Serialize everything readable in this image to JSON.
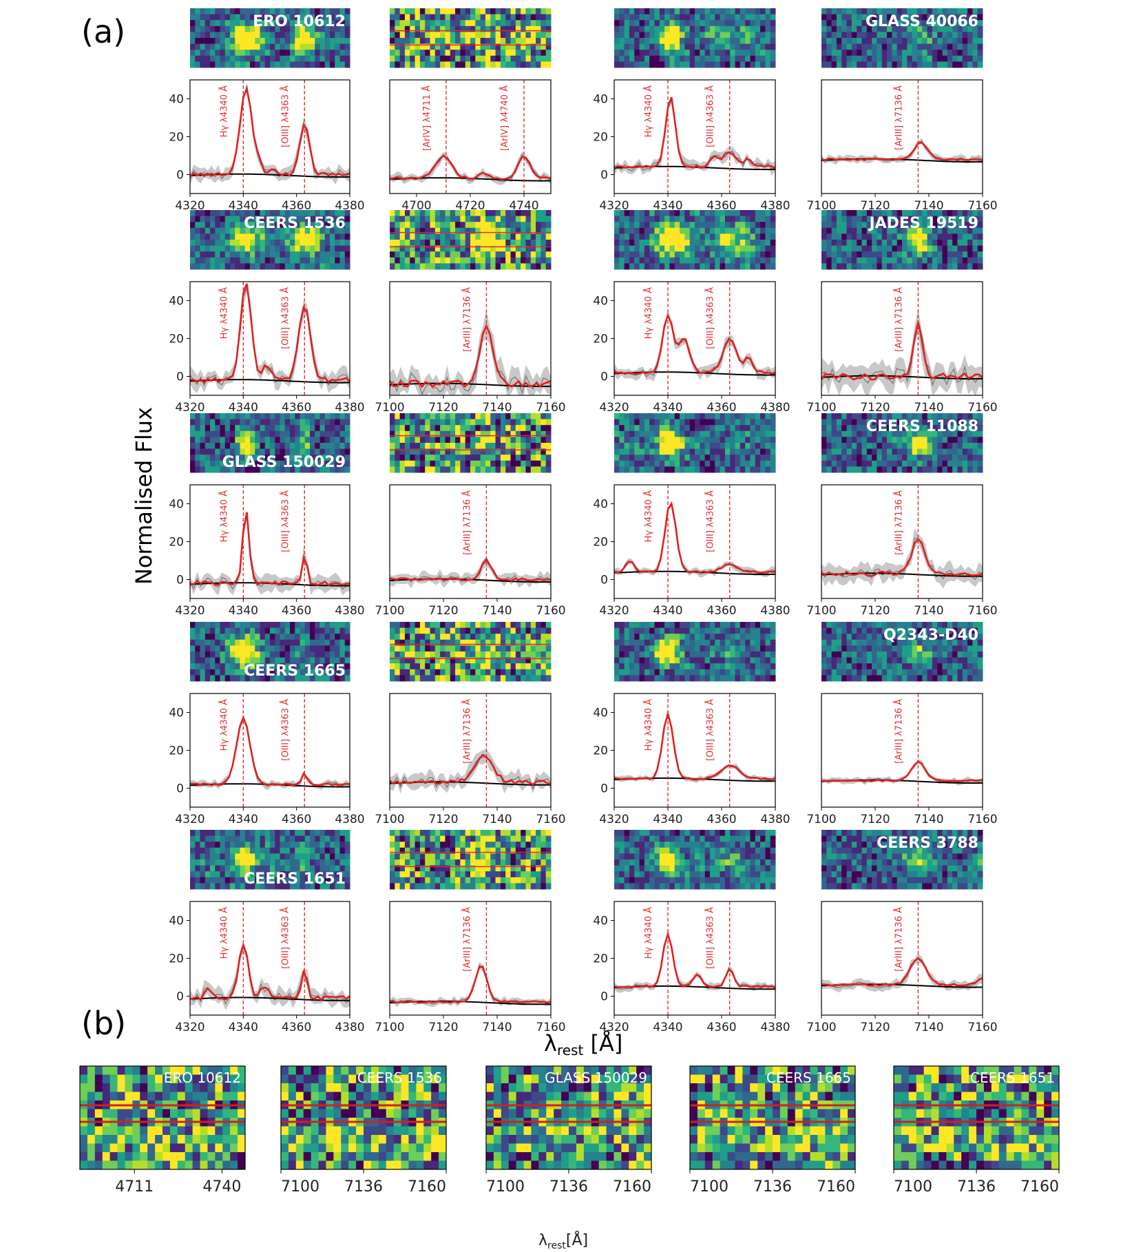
{
  "figure": {
    "panel_a_label": "(a)",
    "panel_b_label": "(b)",
    "ylabel": "Normalised Flux",
    "xlabel": "λ",
    "xlabel_sub": "rest",
    "xlabel_unit": " [Å]",
    "b_xlabel": "λ",
    "b_xlabel_sub": "rest",
    "b_xlabel_unit": "[Å]"
  },
  "colors": {
    "model": "#e02020",
    "data": "#7a7a7a",
    "error_band": "#c8c8c8",
    "continuum": "#000000",
    "marker": "#e03030",
    "viridis_low": "#440154",
    "viridis_high": "#fde725"
  },
  "chart_data": [
    {
      "type": "line",
      "row": 0,
      "col": 0,
      "name": "ERO 10612",
      "window": "Hg",
      "xlim": [
        4320,
        4380
      ],
      "ylim": [
        -10,
        50
      ],
      "xticks": [
        4320,
        4340,
        4360,
        4380
      ],
      "yticks": [
        0,
        20,
        40
      ],
      "lines": [
        {
          "x": 4340,
          "label": "Hγ λ4340 Å"
        },
        {
          "x": 4363,
          "label": "[OIII] λ4363 Å"
        }
      ],
      "peaks": [
        [
          4341,
          46,
          2.2
        ],
        [
          4363,
          27,
          1.8
        ],
        [
          4346,
          6,
          1.2
        ],
        [
          4351,
          3,
          1.2
        ]
      ],
      "base": 0,
      "noise": 3
    },
    {
      "type": "line",
      "row": 0,
      "col": 1,
      "name": "",
      "window": "ArIV",
      "xlim": [
        4690,
        4750
      ],
      "ylim": [
        -10,
        50
      ],
      "xticks": [
        4700,
        4720,
        4740
      ],
      "yticks": [],
      "lines": [
        {
          "x": 4711,
          "label": "[ArIV] λ4711 Å"
        },
        {
          "x": 4740,
          "label": "[ArIV] λ4740 Å"
        }
      ],
      "peaks": [
        [
          4710,
          12,
          3.0
        ],
        [
          4740,
          12,
          2.2
        ],
        [
          4725,
          3,
          1.5
        ]
      ],
      "base": -2,
      "noise": 1.8
    },
    {
      "type": "line",
      "row": 0,
      "col": 2,
      "name": "",
      "window": "Hg",
      "xlim": [
        4320,
        4380
      ],
      "ylim": [
        -10,
        50
      ],
      "xticks": [
        4320,
        4340,
        4360,
        4380
      ],
      "yticks": [
        0,
        20,
        40
      ],
      "lines": [
        {
          "x": 4340,
          "label": "Hγ λ4340 Å"
        },
        {
          "x": 4363,
          "label": "[OIII] λ4363 Å"
        }
      ],
      "peaks": [
        [
          4341,
          37,
          1.8
        ],
        [
          4363,
          8,
          2.5
        ],
        [
          4357,
          5,
          1.5
        ],
        [
          4370,
          4,
          1.5
        ]
      ],
      "base": 4,
      "noise": 2.5
    },
    {
      "type": "line",
      "row": 0,
      "col": 3,
      "name": "GLASS 40066",
      "window": "ArIII",
      "xlim": [
        7100,
        7160
      ],
      "ylim": [
        -10,
        50
      ],
      "xticks": [
        7100,
        7120,
        7140,
        7160
      ],
      "yticks": [],
      "lines": [
        {
          "x": 7136,
          "label": "[ArIII] λ7136 Å"
        }
      ],
      "peaks": [
        [
          7137,
          9,
          2.5
        ]
      ],
      "base": 8,
      "noise": 1.5
    },
    {
      "type": "line",
      "row": 1,
      "col": 0,
      "name": "CEERS 1536",
      "window": "Hg",
      "xlim": [
        4320,
        4380
      ],
      "ylim": [
        -10,
        50
      ],
      "xticks": [
        4320,
        4340,
        4360,
        4380
      ],
      "yticks": [
        0,
        20,
        40
      ],
      "lines": [
        {
          "x": 4340,
          "label": "Hγ λ4340 Å"
        },
        {
          "x": 4363,
          "label": "[OIII] λ4363 Å"
        }
      ],
      "peaks": [
        [
          4341,
          52,
          2.0
        ],
        [
          4363,
          39,
          2.2
        ],
        [
          4349,
          8,
          1.5
        ]
      ],
      "base": -2,
      "noise": 4
    },
    {
      "type": "line",
      "row": 1,
      "col": 1,
      "name": "",
      "window": "ArIII",
      "xlim": [
        7100,
        7160
      ],
      "ylim": [
        -10,
        50
      ],
      "xticks": [
        7100,
        7120,
        7140,
        7160
      ],
      "yticks": [],
      "lines": [
        {
          "x": 7136,
          "label": "[ArIII] λ7136 Å"
        }
      ],
      "peaks": [
        [
          7136,
          30,
          2.5
        ]
      ],
      "base": -4,
      "noise": 6
    },
    {
      "type": "line",
      "row": 1,
      "col": 2,
      "name": "",
      "window": "Hg",
      "xlim": [
        4320,
        4380
      ],
      "ylim": [
        -10,
        50
      ],
      "xticks": [
        4320,
        4340,
        4360,
        4380
      ],
      "yticks": [
        0,
        20,
        40
      ],
      "lines": [
        {
          "x": 4340,
          "label": "Hγ λ4340 Å"
        },
        {
          "x": 4363,
          "label": "[OIII] λ4363 Å"
        }
      ],
      "peaks": [
        [
          4340,
          30,
          2.0
        ],
        [
          4346,
          18,
          2.0
        ],
        [
          4363,
          18,
          2.5
        ],
        [
          4370,
          8,
          1.5
        ]
      ],
      "base": 2,
      "noise": 2.5
    },
    {
      "type": "line",
      "row": 1,
      "col": 3,
      "name": "JADES 19519",
      "window": "ArIII",
      "xlim": [
        7100,
        7160
      ],
      "ylim": [
        -10,
        50
      ],
      "xticks": [
        7100,
        7120,
        7140,
        7160
      ],
      "yticks": [],
      "lines": [
        {
          "x": 7136,
          "label": "[ArIII] λ7136 Å"
        }
      ],
      "peaks": [
        [
          7136,
          28,
          1.6
        ]
      ],
      "base": 0,
      "noise": 6
    },
    {
      "type": "line",
      "row": 2,
      "col": 0,
      "name": "GLASS 150029",
      "window": "Hg",
      "xlim": [
        4320,
        4380
      ],
      "ylim": [
        -10,
        50
      ],
      "xticks": [
        4320,
        4340,
        4360,
        4380
      ],
      "yticks": [
        0,
        20,
        40
      ],
      "lines": [
        {
          "x": 4340,
          "label": "Hγ λ4340 Å"
        },
        {
          "x": 4363,
          "label": "[OIII] λ4363 Å"
        }
      ],
      "peaks": [
        [
          4341,
          39,
          1.2
        ],
        [
          4363,
          14,
          1.0
        ]
      ],
      "base": -2,
      "noise": 3.5
    },
    {
      "type": "line",
      "row": 2,
      "col": 1,
      "name": "",
      "window": "ArIII",
      "xlim": [
        7100,
        7160
      ],
      "ylim": [
        -10,
        50
      ],
      "xticks": [
        7100,
        7120,
        7140,
        7160
      ],
      "yticks": [],
      "lines": [
        {
          "x": 7136,
          "label": "[ArIII] λ7136 Å"
        }
      ],
      "peaks": [
        [
          7136,
          10,
          2.0
        ]
      ],
      "base": 0,
      "noise": 2.5
    },
    {
      "type": "line",
      "row": 2,
      "col": 2,
      "name": "",
      "window": "Hg",
      "xlim": [
        4320,
        4380
      ],
      "ylim": [
        -10,
        50
      ],
      "xticks": [
        4320,
        4340,
        4360,
        4380
      ],
      "yticks": [
        0,
        20,
        40
      ],
      "lines": [
        {
          "x": 4340,
          "label": "Hγ λ4340 Å"
        },
        {
          "x": 4363,
          "label": "[OIII] λ4363 Å"
        }
      ],
      "peaks": [
        [
          4341,
          37,
          2.0
        ],
        [
          4326,
          6,
          1.5
        ],
        [
          4363,
          4,
          3.0
        ]
      ],
      "base": 4,
      "noise": 1.5
    },
    {
      "type": "line",
      "row": 2,
      "col": 3,
      "name": "CEERS 11088",
      "window": "ArIII",
      "xlim": [
        7100,
        7160
      ],
      "ylim": [
        -10,
        50
      ],
      "xticks": [
        7100,
        7120,
        7140,
        7160
      ],
      "yticks": [],
      "lines": [
        {
          "x": 7136,
          "label": "[ArIII] λ7136 Å"
        }
      ],
      "peaks": [
        [
          7136,
          18,
          2.5
        ]
      ],
      "base": 3,
      "noise": 4
    },
    {
      "type": "line",
      "row": 3,
      "col": 0,
      "name": "CEERS 1665",
      "window": "Hg",
      "xlim": [
        4320,
        4380
      ],
      "ylim": [
        -10,
        50
      ],
      "xticks": [
        4320,
        4340,
        4360,
        4380
      ],
      "yticks": [
        0,
        20,
        40
      ],
      "lines": [
        {
          "x": 4340,
          "label": "Hγ λ4340 Å"
        },
        {
          "x": 4363,
          "label": "[OIII] λ4363 Å"
        }
      ],
      "peaks": [
        [
          4340,
          35,
          2.5
        ],
        [
          4363,
          6,
          1.0
        ]
      ],
      "base": 2,
      "noise": 1.5
    },
    {
      "type": "line",
      "row": 3,
      "col": 1,
      "name": "",
      "window": "ArIII",
      "xlim": [
        7100,
        7160
      ],
      "ylim": [
        -10,
        50
      ],
      "xticks": [
        7100,
        7120,
        7140,
        7160
      ],
      "yticks": [],
      "lines": [
        {
          "x": 7136,
          "label": "[ArIII] λ7136 Å"
        }
      ],
      "peaks": [
        [
          7135,
          14,
          3.5
        ]
      ],
      "base": 3,
      "noise": 3.5
    },
    {
      "type": "line",
      "row": 3,
      "col": 2,
      "name": "",
      "window": "Hg",
      "xlim": [
        4320,
        4380
      ],
      "ylim": [
        -10,
        50
      ],
      "xticks": [
        4320,
        4340,
        4360,
        4380
      ],
      "yticks": [
        0,
        20,
        40
      ],
      "lines": [
        {
          "x": 4340,
          "label": "Hγ λ4340 Å"
        },
        {
          "x": 4363,
          "label": "[OIII] λ4363 Å"
        }
      ],
      "peaks": [
        [
          4340,
          34,
          2.0
        ],
        [
          4363,
          7,
          3.5
        ]
      ],
      "base": 5,
      "noise": 1.2
    },
    {
      "type": "line",
      "row": 3,
      "col": 3,
      "name": "Q2343-D40",
      "window": "ArIII",
      "xlim": [
        7100,
        7160
      ],
      "ylim": [
        -10,
        50
      ],
      "xticks": [
        7100,
        7120,
        7140,
        7160
      ],
      "yticks": [],
      "lines": [
        {
          "x": 7136,
          "label": "[ArIII] λ7136 Å"
        }
      ],
      "peaks": [
        [
          7136,
          10,
          2.5
        ]
      ],
      "base": 4,
      "noise": 1.2
    },
    {
      "type": "line",
      "row": 4,
      "col": 0,
      "name": "CEERS 1651",
      "window": "Hg",
      "xlim": [
        4320,
        4380
      ],
      "ylim": [
        -10,
        50
      ],
      "xticks": [
        4320,
        4340,
        4360,
        4380
      ],
      "yticks": [
        0,
        20,
        40
      ],
      "lines": [
        {
          "x": 4340,
          "label": "Hγ λ4340 Å"
        },
        {
          "x": 4363,
          "label": "[OIII] λ4363 Å"
        }
      ],
      "peaks": [
        [
          4340,
          29,
          1.8
        ],
        [
          4363,
          15,
          1.0
        ],
        [
          4348,
          6,
          1.5
        ],
        [
          4327,
          5,
          1.2
        ]
      ],
      "base": -1,
      "noise": 3.5
    },
    {
      "type": "line",
      "row": 4,
      "col": 1,
      "name": "",
      "window": "ArIII",
      "xlim": [
        7100,
        7160
      ],
      "ylim": [
        -10,
        50
      ],
      "xticks": [
        7100,
        7120,
        7140,
        7160
      ],
      "yticks": [],
      "lines": [
        {
          "x": 7136,
          "label": "[ArIII] λ7136 Å"
        }
      ],
      "peaks": [
        [
          7134,
          19,
          2.2
        ]
      ],
      "base": -3,
      "noise": 1.5
    },
    {
      "type": "line",
      "row": 4,
      "col": 2,
      "name": "",
      "window": "Hg",
      "xlim": [
        4320,
        4380
      ],
      "ylim": [
        -10,
        50
      ],
      "xticks": [
        4320,
        4340,
        4360,
        4380
      ],
      "yticks": [
        0,
        20,
        40
      ],
      "lines": [
        {
          "x": 4340,
          "label": "Hγ λ4340 Å"
        },
        {
          "x": 4363,
          "label": "[OIII] λ4363 Å"
        }
      ],
      "peaks": [
        [
          4340,
          28,
          1.8
        ],
        [
          4351,
          7,
          1.5
        ],
        [
          4363,
          9,
          1.5
        ]
      ],
      "base": 5,
      "noise": 1.5
    },
    {
      "type": "line",
      "row": 4,
      "col": 3,
      "name": "CEERS 3788",
      "window": "ArIII",
      "xlim": [
        7100,
        7160
      ],
      "ylim": [
        -10,
        50
      ],
      "xticks": [
        7100,
        7120,
        7140,
        7160
      ],
      "yticks": [],
      "lines": [
        {
          "x": 7136,
          "label": "[ArIII] λ7136 Å"
        }
      ],
      "peaks": [
        [
          7136,
          14,
          3.0
        ],
        [
          7160,
          4,
          2.0
        ]
      ],
      "base": 6,
      "noise": 2
    }
  ],
  "panel_b": [
    {
      "name": "ERO 10612",
      "xticks": [
        "4711",
        "4740"
      ]
    },
    {
      "name": "CEERS 1536",
      "xticks": [
        "7100",
        "7136",
        "7160"
      ]
    },
    {
      "name": "GLASS 150029",
      "xticks": [
        "7100",
        "7136",
        "7160"
      ]
    },
    {
      "name": "CEERS 1665",
      "xticks": [
        "7100",
        "7136",
        "7160"
      ]
    },
    {
      "name": "CEERS 1651",
      "xticks": [
        "7100",
        "7136",
        "7160"
      ]
    }
  ]
}
